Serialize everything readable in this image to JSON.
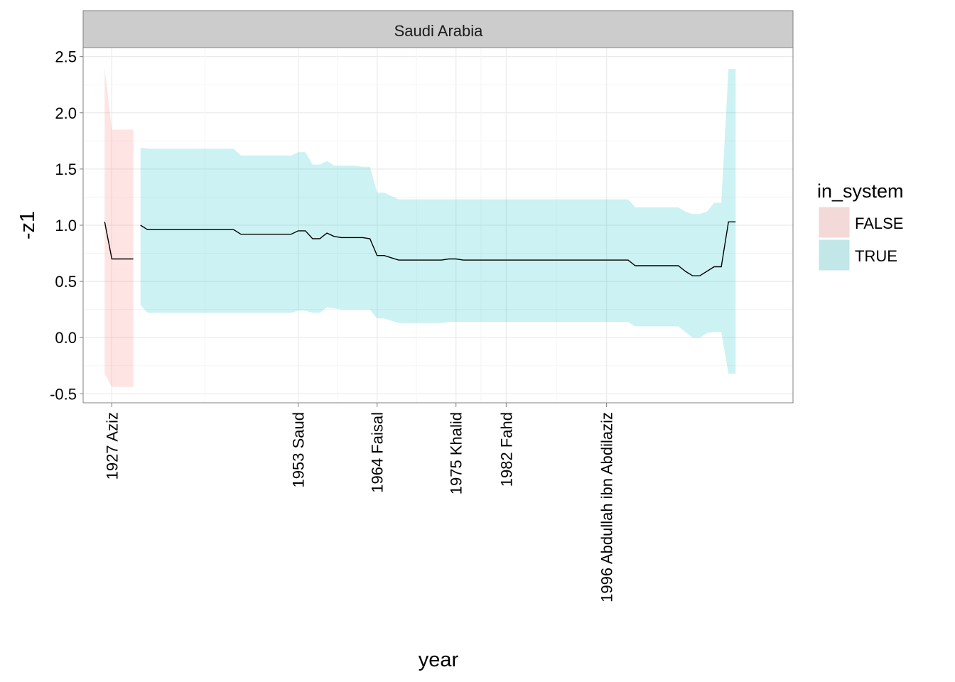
{
  "chart_data": {
    "type": "area",
    "facet_title": "Saudi Arabia",
    "xlabel": "year",
    "ylabel": "-z1",
    "xlim": [
      1923,
      2022
    ],
    "ylim": [
      -0.58,
      2.58
    ],
    "y_ticks": [
      -0.5,
      0.0,
      0.5,
      1.0,
      1.5,
      2.0,
      2.5
    ],
    "y_tick_labels": [
      "-0.5",
      "0.0",
      "0.5",
      "1.0",
      "1.5",
      "2.0",
      "2.5"
    ],
    "x_ticks": [
      {
        "year": 1927,
        "label": "1927 Aziz"
      },
      {
        "year": 1953,
        "label": "1953 Saud"
      },
      {
        "year": 1964,
        "label": "1964 Faisal"
      },
      {
        "year": 1975,
        "label": "1975 Khalid"
      },
      {
        "year": 1982,
        "label": "1982 Fahd"
      },
      {
        "year": 1996,
        "label": "1996 Abdullah ibn Abdilaziz"
      }
    ],
    "grid": true,
    "legend": {
      "title": "in_system",
      "position": "right",
      "items": [
        {
          "label": "FALSE",
          "color": "#F8766D"
        },
        {
          "label": "TRUE",
          "color": "#00BFC4"
        }
      ]
    },
    "series": [
      {
        "group": "FALSE",
        "color": "#F8766D",
        "x": [
          1926,
          1927,
          1930
        ],
        "y": [
          1.03,
          0.7,
          0.7
        ],
        "lower": [
          -0.32,
          -0.44,
          -0.44
        ],
        "upper": [
          2.4,
          1.85,
          1.85
        ]
      },
      {
        "group": "TRUE",
        "color": "#00BFC4",
        "x": [
          1931,
          1932,
          1941,
          1942,
          1944,
          1945,
          1946,
          1947,
          1948,
          1949,
          1950,
          1951,
          1952,
          1953,
          1954,
          1955,
          1956,
          1957,
          1958,
          1959,
          1960,
          1961,
          1962,
          1963,
          1964,
          1965,
          1966,
          1967,
          1968,
          1969,
          1970,
          1971,
          1972,
          1973,
          1974,
          1975,
          1976,
          1977,
          1978,
          1979,
          1980,
          1981,
          1982,
          1983,
          1984,
          1985,
          1986,
          1987,
          1988,
          1989,
          1990,
          1991,
          1992,
          1993,
          1994,
          1995,
          1996,
          1997,
          1998,
          1999,
          2000,
          2001,
          2002,
          2003,
          2004,
          2005,
          2006,
          2007,
          2008,
          2009,
          2010,
          2011,
          2012,
          2013,
          2014
        ],
        "y": [
          1.0,
          0.96,
          0.96,
          0.96,
          0.96,
          0.92,
          0.92,
          0.92,
          0.92,
          0.92,
          0.92,
          0.92,
          0.92,
          0.95,
          0.95,
          0.88,
          0.88,
          0.93,
          0.9,
          0.89,
          0.89,
          0.89,
          0.89,
          0.88,
          0.73,
          0.73,
          0.71,
          0.69,
          0.69,
          0.69,
          0.69,
          0.69,
          0.69,
          0.69,
          0.7,
          0.7,
          0.69,
          0.69,
          0.69,
          0.69,
          0.69,
          0.69,
          0.69,
          0.69,
          0.69,
          0.69,
          0.69,
          0.69,
          0.69,
          0.69,
          0.69,
          0.69,
          0.69,
          0.69,
          0.69,
          0.69,
          0.69,
          0.69,
          0.69,
          0.69,
          0.64,
          0.64,
          0.64,
          0.64,
          0.64,
          0.64,
          0.64,
          0.59,
          0.55,
          0.55,
          0.59,
          0.63,
          0.63,
          1.03,
          1.03
        ],
        "lower": [
          0.29,
          0.22,
          0.22,
          0.22,
          0.22,
          0.22,
          0.22,
          0.22,
          0.22,
          0.22,
          0.22,
          0.22,
          0.22,
          0.24,
          0.24,
          0.22,
          0.22,
          0.27,
          0.26,
          0.25,
          0.25,
          0.25,
          0.25,
          0.25,
          0.17,
          0.17,
          0.15,
          0.13,
          0.13,
          0.13,
          0.13,
          0.13,
          0.13,
          0.13,
          0.14,
          0.14,
          0.14,
          0.14,
          0.14,
          0.14,
          0.14,
          0.14,
          0.14,
          0.14,
          0.14,
          0.14,
          0.14,
          0.14,
          0.14,
          0.14,
          0.14,
          0.14,
          0.14,
          0.14,
          0.14,
          0.14,
          0.14,
          0.14,
          0.14,
          0.14,
          0.1,
          0.1,
          0.1,
          0.1,
          0.1,
          0.1,
          0.1,
          0.05,
          0.0,
          0.0,
          0.04,
          0.05,
          0.05,
          -0.32,
          -0.32
        ],
        "upper": [
          1.69,
          1.68,
          1.68,
          1.68,
          1.68,
          1.62,
          1.62,
          1.62,
          1.62,
          1.62,
          1.62,
          1.62,
          1.62,
          1.65,
          1.65,
          1.54,
          1.54,
          1.57,
          1.53,
          1.53,
          1.53,
          1.53,
          1.52,
          1.52,
          1.29,
          1.29,
          1.26,
          1.23,
          1.23,
          1.23,
          1.23,
          1.23,
          1.23,
          1.23,
          1.23,
          1.23,
          1.23,
          1.23,
          1.23,
          1.23,
          1.23,
          1.23,
          1.23,
          1.23,
          1.23,
          1.23,
          1.23,
          1.23,
          1.23,
          1.23,
          1.23,
          1.23,
          1.23,
          1.23,
          1.23,
          1.23,
          1.23,
          1.23,
          1.23,
          1.23,
          1.16,
          1.16,
          1.16,
          1.16,
          1.16,
          1.16,
          1.16,
          1.12,
          1.1,
          1.1,
          1.12,
          1.2,
          1.2,
          2.39,
          2.39
        ]
      }
    ]
  }
}
